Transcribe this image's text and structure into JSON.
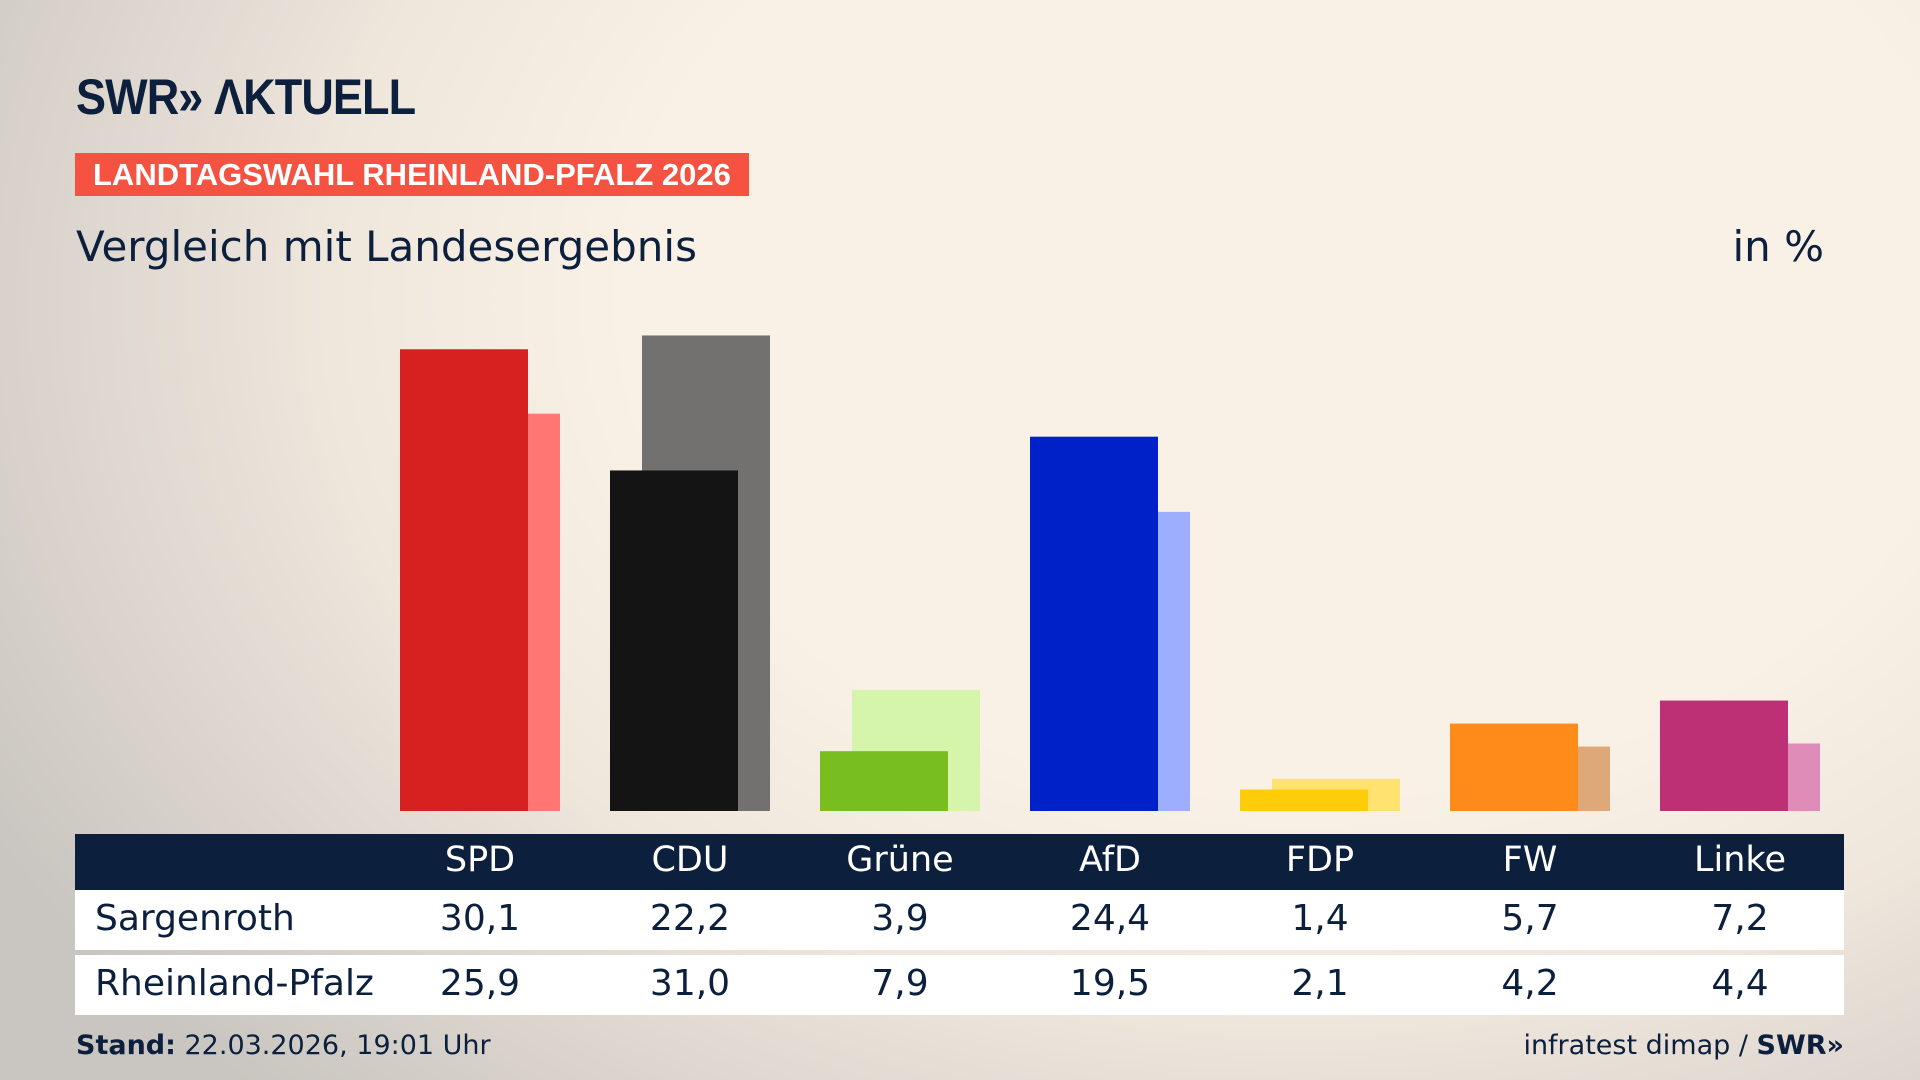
{
  "brand": {
    "logo": "SWR» ΛKTUELL",
    "footer_logo": "SWR»"
  },
  "tag": "LANDTAGSWAHL RHEINLAND-PFALZ 2026",
  "subtitle": "Vergleich mit Landesergebnis",
  "unit": "in %",
  "chart_data": {
    "type": "bar",
    "categories": [
      "SPD",
      "CDU",
      "Grüne",
      "AfD",
      "FDP",
      "FW",
      "Linke"
    ],
    "series": [
      {
        "name": "Sargenroth",
        "values": [
          30.1,
          22.2,
          3.9,
          24.4,
          1.4,
          5.7,
          7.2
        ]
      },
      {
        "name": "Rheinland-Pfalz",
        "values": [
          25.9,
          31.0,
          7.9,
          19.5,
          2.1,
          4.2,
          4.4
        ]
      }
    ],
    "value_labels": [
      [
        "30,1",
        "22,2",
        "3,9",
        "24,4",
        "1,4",
        "5,7",
        "7,2"
      ],
      [
        "25,9",
        "31,0",
        "7,9",
        "19,5",
        "2,1",
        "4,2",
        "4,4"
      ]
    ],
    "colors": {
      "main": [
        "#d72020",
        "#141414",
        "#78be1e",
        "#0021c8",
        "#ffcc0a",
        "#ff8c1a",
        "#be3075"
      ],
      "compare": [
        "#ff7672",
        "#737170",
        "#d5f5ab",
        "#9daeff",
        "#ffe270",
        "#dfa878",
        "#e08cb8"
      ]
    },
    "ylim": [
      0,
      32
    ],
    "grid": false
  },
  "footer": {
    "stand_label": "Stand:",
    "stand_value": " 22.03.2026, 19:01 Uhr",
    "source": "infratest dimap / "
  }
}
